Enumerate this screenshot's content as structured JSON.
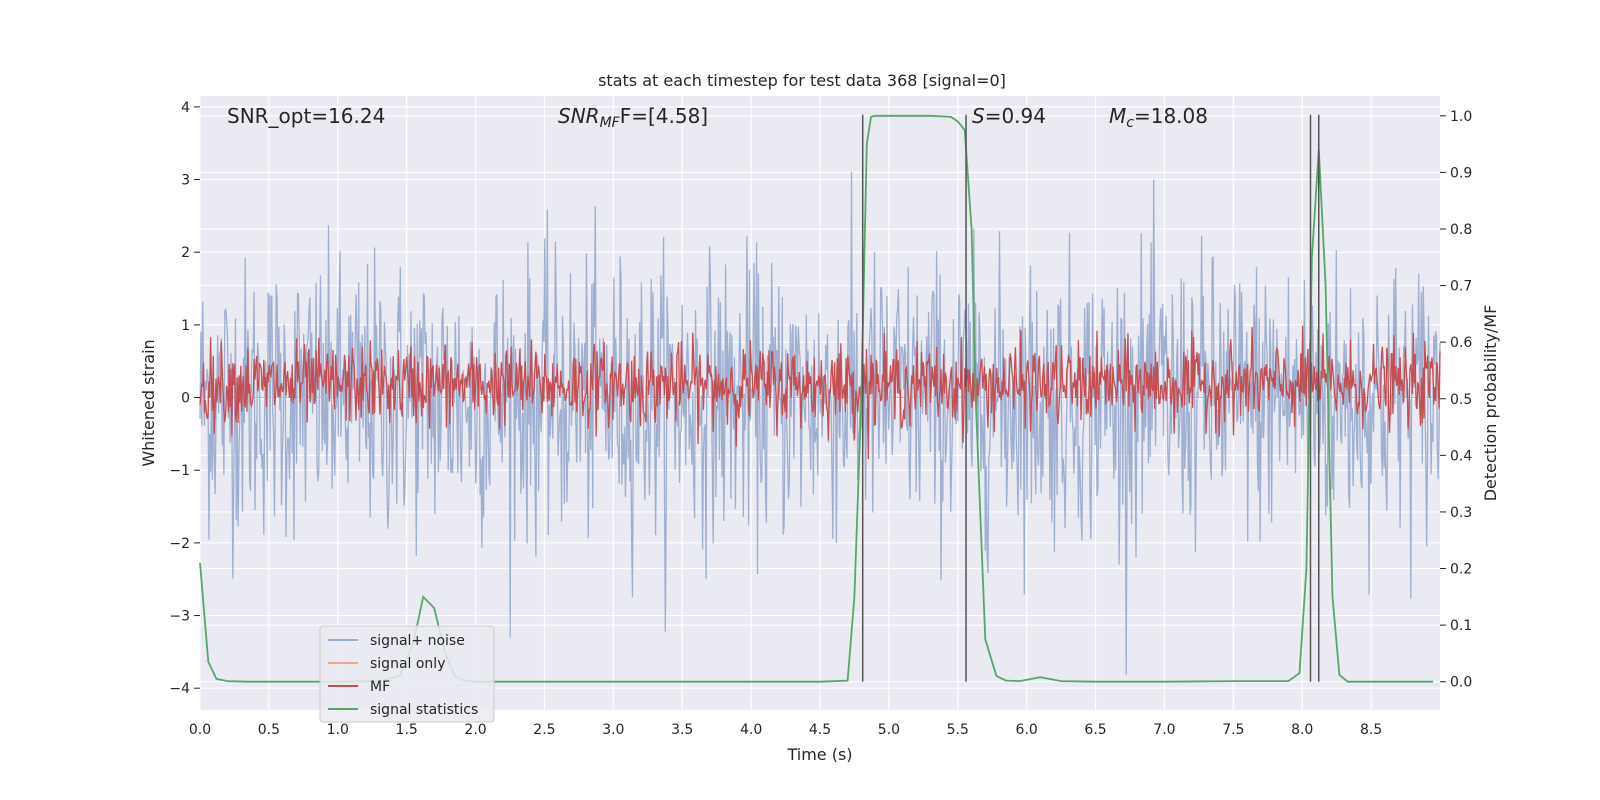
{
  "chart_data": {
    "type": "line",
    "title": "stats at each timestep for test data 368 [signal=0]",
    "xlabel": "Time (s)",
    "ylabel_left": "Whitened strain",
    "ylabel_right": "Detection probability/MF",
    "xlim": [
      0.0,
      9.0
    ],
    "ylim_left": [
      -4.3,
      4.15
    ],
    "ylim_right": [
      -0.05,
      1.035
    ],
    "x_ticks": [
      0.0,
      0.5,
      1.0,
      1.5,
      2.0,
      2.5,
      3.0,
      3.5,
      4.0,
      4.5,
      5.0,
      5.5,
      6.0,
      6.5,
      7.0,
      7.5,
      8.0,
      8.5
    ],
    "x_tick_labels": [
      "0.0",
      "0.5",
      "1.0",
      "1.5",
      "2.0",
      "2.5",
      "3.0",
      "3.5",
      "4.0",
      "4.5",
      "5.0",
      "5.5",
      "6.0",
      "6.5",
      "7.0",
      "7.5",
      "8.0",
      "8.5"
    ],
    "y_left_ticks": [
      -4,
      -3,
      -2,
      -1,
      0,
      1,
      2,
      3,
      4
    ],
    "y_left_tick_labels": [
      "−4",
      "−3",
      "−2",
      "−1",
      "0",
      "1",
      "2",
      "3",
      "4"
    ],
    "y_right_ticks": [
      0.0,
      0.1,
      0.2,
      0.3,
      0.4,
      0.5,
      0.6,
      0.7,
      0.8,
      0.9,
      1.0
    ],
    "y_right_tick_labels": [
      "0.0",
      "0.1",
      "0.2",
      "0.3",
      "0.4",
      "0.5",
      "0.6",
      "0.7",
      "0.8",
      "0.9",
      "1.0"
    ],
    "grid": true,
    "legend_position": "lower-left",
    "annotations": {
      "snr_opt": "SNR_opt=16.24",
      "snr_mf_main": "SNR",
      "snr_mf_sub": "MF",
      "snr_mf_rest": "F=[4.58]",
      "s_italic": "S",
      "s_rest": "=0.94",
      "mc_main": "M",
      "mc_sub": "c",
      "mc_rest": "=18.08"
    },
    "vertical_lines_x": [
      4.81,
      5.56,
      8.06,
      8.12
    ],
    "series": [
      {
        "name": "signal+ noise",
        "color": "#9aaccf",
        "axis": "left",
        "style": "noise",
        "n_points": 1400,
        "std": 0.95,
        "x_range": [
          0.0,
          9.0
        ]
      },
      {
        "name": "signal only",
        "color": "#e8a98f",
        "axis": "left",
        "style": "flat",
        "value": 0.0
      },
      {
        "name": "MF",
        "color": "#c44e52",
        "axis": "right",
        "style": "noise",
        "n_points": 1400,
        "mean": 0.525,
        "std": 0.035,
        "x_range": [
          0.0,
          9.0
        ]
      },
      {
        "name": "signal statistics",
        "color": "#55a868",
        "axis": "right",
        "style": "line",
        "x": [
          0.0,
          0.06,
          0.12,
          0.2,
          0.35,
          0.6,
          1.0,
          1.3,
          1.45,
          1.55,
          1.62,
          1.7,
          1.78,
          1.85,
          1.92,
          2.0,
          2.3,
          3.0,
          4.0,
          4.5,
          4.7,
          4.75,
          4.8,
          4.84,
          4.87,
          4.9,
          5.0,
          5.3,
          5.45,
          5.5,
          5.55,
          5.6,
          5.63,
          5.7,
          5.78,
          5.85,
          5.95,
          6.1,
          6.25,
          6.5,
          7.0,
          7.5,
          7.9,
          7.98,
          8.03,
          8.07,
          8.12,
          8.17,
          8.22,
          8.27,
          8.33,
          8.5,
          8.95
        ],
        "y": [
          0.21,
          0.035,
          0.005,
          0.001,
          0.0,
          0.0,
          0.0,
          0.001,
          0.01,
          0.07,
          0.15,
          0.13,
          0.05,
          0.01,
          0.002,
          0.0,
          0.0,
          0.0,
          0.0,
          0.0,
          0.002,
          0.15,
          0.5,
          0.95,
          0.998,
          1.0,
          1.0,
          1.0,
          0.998,
          0.99,
          0.975,
          0.8,
          0.5,
          0.075,
          0.01,
          0.002,
          0.001,
          0.008,
          0.001,
          0.0,
          0.0,
          0.001,
          0.001,
          0.015,
          0.2,
          0.75,
          0.94,
          0.7,
          0.15,
          0.012,
          0.0,
          0.0,
          0.0
        ]
      }
    ]
  }
}
